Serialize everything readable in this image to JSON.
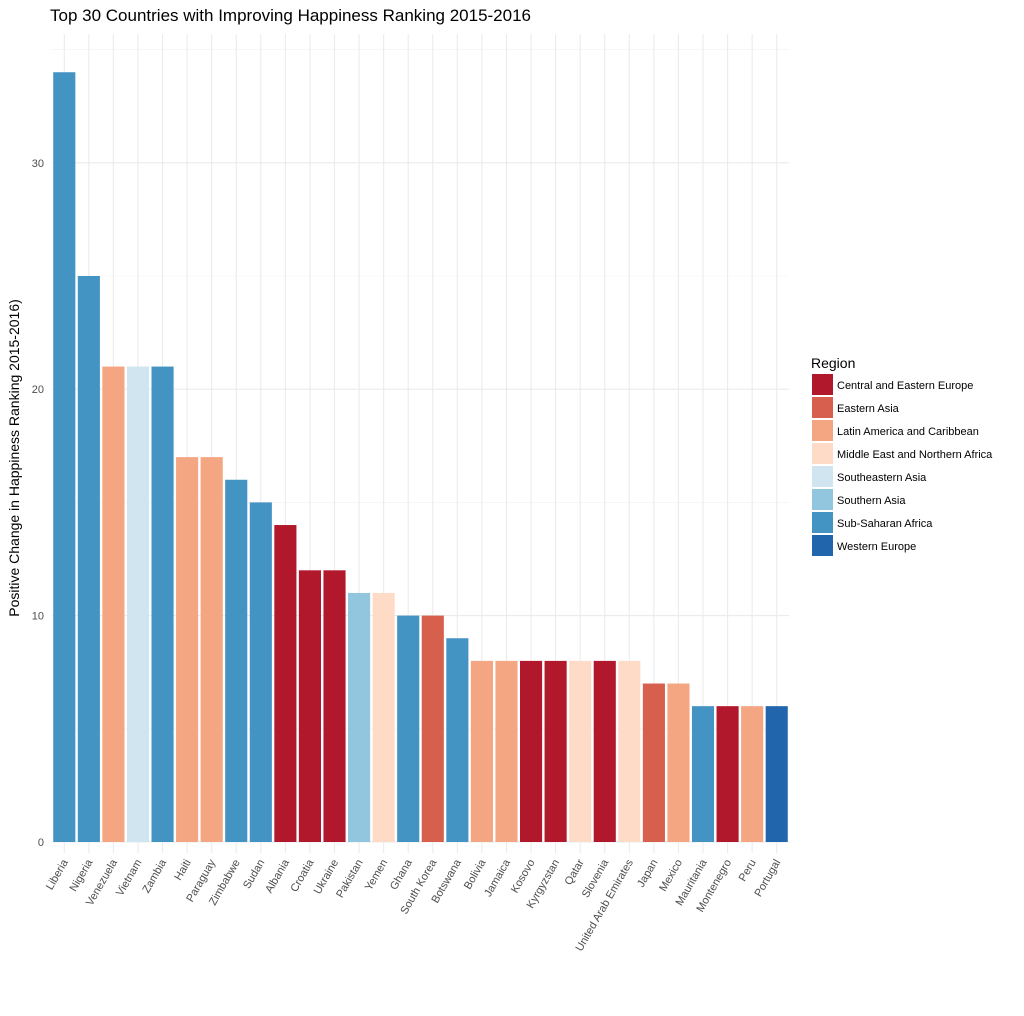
{
  "chart_data": {
    "type": "bar",
    "title": "Top 30 Countries with Improving Happiness Ranking 2015-2016",
    "xlabel": "",
    "ylabel": "Positive Change in Happiness Ranking 2015-2016)",
    "ylim": [
      0,
      35
    ],
    "yticks": [
      0,
      10,
      20,
      30
    ],
    "grid": true,
    "legend_title": "Region",
    "legend_position": "right",
    "regions": [
      {
        "name": "Central and Eastern Europe",
        "color": "#b2182b"
      },
      {
        "name": "Eastern Asia",
        "color": "#d6604d"
      },
      {
        "name": "Latin America and Caribbean",
        "color": "#f4a582"
      },
      {
        "name": "Middle East and Northern Africa",
        "color": "#fddbc7"
      },
      {
        "name": "Southeastern Asia",
        "color": "#d1e5f0"
      },
      {
        "name": "Southern Asia",
        "color": "#92c5de"
      },
      {
        "name": "Sub-Saharan Africa",
        "color": "#4393c3"
      },
      {
        "name": "Western Europe",
        "color": "#2166ac"
      }
    ],
    "categories": [
      "Liberia",
      "Nigeria",
      "Venezuela",
      "Vietnam",
      "Zambia",
      "Haiti",
      "Paraguay",
      "Zimbabwe",
      "Sudan",
      "Albania",
      "Croatia",
      "Ukraine",
      "Pakistan",
      "Yemen",
      "Ghana",
      "South Korea",
      "Botswana",
      "Bolivia",
      "Jamaica",
      "Kosovo",
      "Kyrgyzstan",
      "Qatar",
      "Slovenia",
      "United Arab Emirates",
      "Japan",
      "Mexico",
      "Mauritania",
      "Montenegro",
      "Peru",
      "Portugal"
    ],
    "values": [
      34,
      25,
      21,
      21,
      21,
      17,
      17,
      16,
      15,
      14,
      12,
      12,
      11,
      11,
      10,
      10,
      9,
      8,
      8,
      8,
      8,
      8,
      8,
      8,
      7,
      7,
      6,
      6,
      6,
      6
    ],
    "bar_regions": [
      "Sub-Saharan Africa",
      "Sub-Saharan Africa",
      "Latin America and Caribbean",
      "Southeastern Asia",
      "Sub-Saharan Africa",
      "Latin America and Caribbean",
      "Latin America and Caribbean",
      "Sub-Saharan Africa",
      "Sub-Saharan Africa",
      "Central and Eastern Europe",
      "Central and Eastern Europe",
      "Central and Eastern Europe",
      "Southern Asia",
      "Middle East and Northern Africa",
      "Sub-Saharan Africa",
      "Eastern Asia",
      "Sub-Saharan Africa",
      "Latin America and Caribbean",
      "Latin America and Caribbean",
      "Central and Eastern Europe",
      "Central and Eastern Europe",
      "Middle East and Northern Africa",
      "Central and Eastern Europe",
      "Middle East and Northern Africa",
      "Eastern Asia",
      "Latin America and Caribbean",
      "Sub-Saharan Africa",
      "Central and Eastern Europe",
      "Latin America and Caribbean",
      "Western Europe"
    ]
  }
}
